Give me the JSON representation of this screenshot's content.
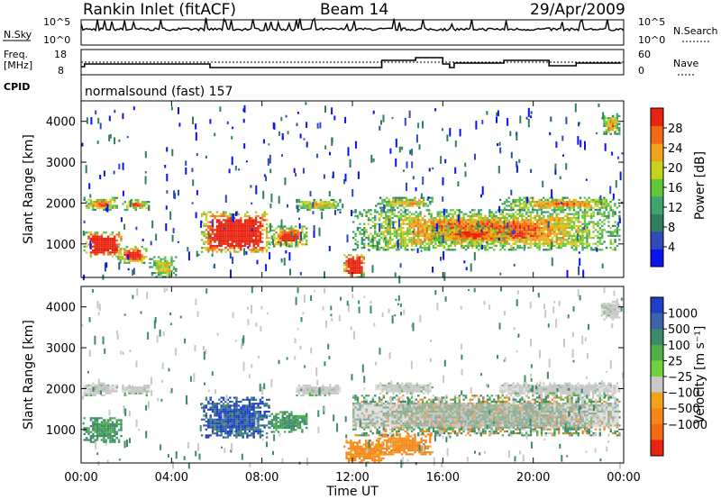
{
  "header": {
    "station": "Rankin Inlet (fitACF)",
    "beam": "Beam 14",
    "date": "29/Apr/2009"
  },
  "top_panels": {
    "nsky_label": "N.Sky",
    "nsky_ticks": [
      "10^5",
      "10^0"
    ],
    "nsearch_label": "N.Search",
    "nsearch_ticks": [
      "10^5",
      "10^0"
    ],
    "freq_label_1": "Freq.",
    "freq_label_2": "[MHz]",
    "freq_ticks": [
      "18",
      "8"
    ],
    "nave_label": "Nave",
    "nave_ticks": [
      "60",
      "0"
    ],
    "cpid_label": "CPID",
    "cpid_value": "normalsound (fast) 157"
  },
  "chart_data": [
    {
      "type": "heatmap",
      "name": "power",
      "ylabel": "Slant Range [km]",
      "ylim": [
        180,
        4500
      ],
      "yticks": [
        1000,
        2000,
        3000,
        4000
      ],
      "xlim": [
        0,
        24
      ],
      "colorbar": {
        "label": "Power [dB]",
        "range": [
          0,
          32
        ],
        "ticks": [
          4,
          8,
          12,
          16,
          20,
          24,
          28
        ],
        "colors": [
          "#0a12ee",
          "#2f49b8",
          "#2f7f5f",
          "#3fa46b",
          "#5ec83a",
          "#c8d21e",
          "#f0a21a",
          "#f26a16",
          "#e8230f"
        ]
      },
      "echo_regions": [
        {
          "t": [
            0.1,
            1.8
          ],
          "r": [
            700,
            1300
          ],
          "level": 0.9
        },
        {
          "t": [
            1.6,
            2.9
          ],
          "r": [
            550,
            950
          ],
          "level": 0.6
        },
        {
          "t": [
            0.1,
            1.6
          ],
          "r": [
            1850,
            2150
          ],
          "level": 0.45
        },
        {
          "t": [
            1.8,
            3.0
          ],
          "r": [
            1850,
            2100
          ],
          "level": 0.4
        },
        {
          "t": [
            5.3,
            8.3
          ],
          "r": [
            800,
            1800
          ],
          "level": 0.95
        },
        {
          "t": [
            8.3,
            10.0
          ],
          "r": [
            950,
            1450
          ],
          "level": 0.55
        },
        {
          "t": [
            11.6,
            12.5
          ],
          "r": [
            200,
            750
          ],
          "level": 1.0
        },
        {
          "t": [
            12.0,
            23.8
          ],
          "r": [
            850,
            1850
          ],
          "level": 0.45
        },
        {
          "t": [
            9.5,
            11.5
          ],
          "r": [
            1850,
            2100
          ],
          "level": 0.35
        },
        {
          "t": [
            13.0,
            15.5
          ],
          "r": [
            1900,
            2150
          ],
          "level": 0.35
        },
        {
          "t": [
            18.5,
            23.8
          ],
          "r": [
            1850,
            2150
          ],
          "level": 0.4
        },
        {
          "t": [
            15.5,
            19.0
          ],
          "r": [
            1050,
            1450
          ],
          "level": 0.5
        },
        {
          "t": [
            23.0,
            23.8
          ],
          "r": [
            3700,
            4200
          ],
          "level": 0.35
        },
        {
          "t": [
            3.0,
            4.2
          ],
          "r": [
            180,
            700
          ],
          "level": 0.3
        }
      ]
    },
    {
      "type": "heatmap",
      "name": "velocity",
      "xlabel": "Time UT",
      "ylabel": "Slant Range [km]",
      "ylim": [
        180,
        4500
      ],
      "yticks": [
        1000,
        2000,
        3000,
        4000
      ],
      "xlim": [
        0,
        24
      ],
      "xticks": [
        "00:00",
        "04:00",
        "08:00",
        "12:00",
        "16:00",
        "20:00",
        "00:00"
      ],
      "colorbar": {
        "label": "Velocity [m s⁻¹]",
        "ticks": [
          "1000",
          "500",
          "100",
          "25",
          "−25",
          "−100",
          "−500",
          "−1000"
        ],
        "colors": [
          "#1f3fc4",
          "#3d62a8",
          "#3d8a6a",
          "#4fb04a",
          "#6ed23c",
          "#c8c8c8",
          "#f0a21a",
          "#f5861a",
          "#f26a16",
          "#e8230f"
        ]
      },
      "echo_regions": [
        {
          "t": [
            0.1,
            1.8
          ],
          "r": [
            700,
            1300
          ],
          "kind": "green"
        },
        {
          "t": [
            0.1,
            1.6
          ],
          "r": [
            1850,
            2150
          ],
          "kind": "grey"
        },
        {
          "t": [
            1.8,
            3.0
          ],
          "r": [
            1850,
            2100
          ],
          "kind": "grey"
        },
        {
          "t": [
            5.3,
            8.3
          ],
          "r": [
            800,
            1800
          ],
          "kind": "blue"
        },
        {
          "t": [
            8.3,
            10.0
          ],
          "r": [
            950,
            1450
          ],
          "kind": "green"
        },
        {
          "t": [
            11.6,
            13.5
          ],
          "r": [
            200,
            750
          ],
          "kind": "orange"
        },
        {
          "t": [
            13.0,
            15.5
          ],
          "r": [
            400,
            900
          ],
          "kind": "orange"
        },
        {
          "t": [
            12.0,
            23.8
          ],
          "r": [
            850,
            1850
          ],
          "kind": "mixed"
        },
        {
          "t": [
            9.5,
            11.5
          ],
          "r": [
            1850,
            2100
          ],
          "kind": "grey"
        },
        {
          "t": [
            13.0,
            15.5
          ],
          "r": [
            1900,
            2150
          ],
          "kind": "grey"
        },
        {
          "t": [
            18.5,
            23.8
          ],
          "r": [
            1850,
            2150
          ],
          "kind": "grey"
        },
        {
          "t": [
            23.0,
            23.8
          ],
          "r": [
            3700,
            4200
          ],
          "kind": "grey"
        }
      ]
    }
  ]
}
